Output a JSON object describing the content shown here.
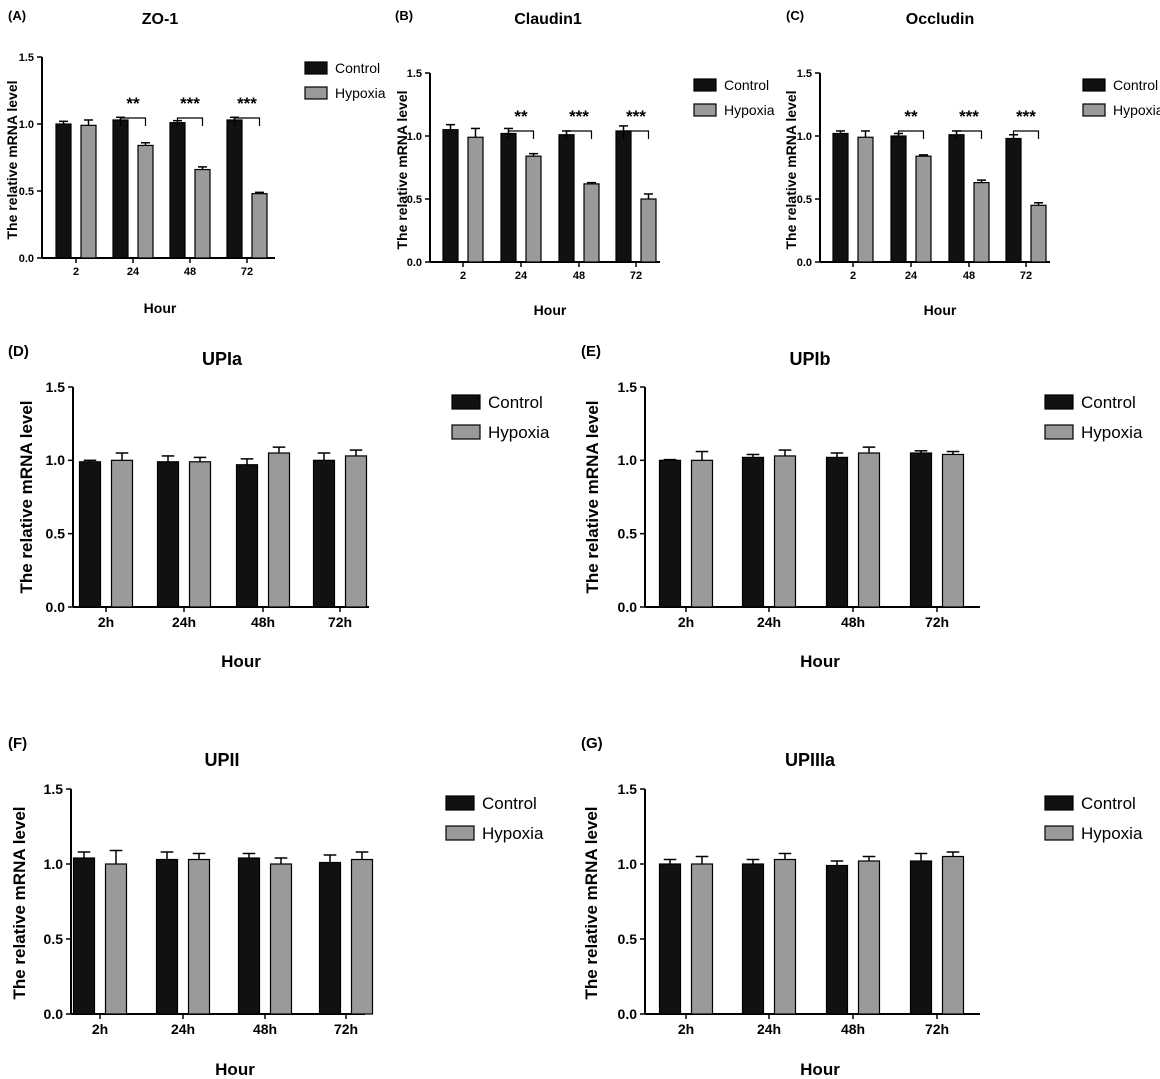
{
  "colors": {
    "control": "#111111",
    "hypoxia": "#9a9a9a",
    "axis": "#000000"
  },
  "chart_data": [
    {
      "id": "A",
      "panel_label": "(A)",
      "type": "bar",
      "title": "ZO-1",
      "xlabel": "Hour",
      "ylabel": "The relative mRNA level",
      "categories": [
        "2",
        "24",
        "48",
        "72"
      ],
      "ylim": [
        0,
        1.5
      ],
      "yticks": [
        "0.0",
        "0.5",
        "1.0",
        "1.5"
      ],
      "legend_placement": "top-right",
      "series": [
        {
          "name": "Control",
          "values": [
            1.0,
            1.03,
            1.01,
            1.03
          ],
          "errors": [
            0.02,
            0.02,
            0.015,
            0.02
          ]
        },
        {
          "name": "Hypoxia",
          "values": [
            0.99,
            0.84,
            0.66,
            0.48
          ],
          "errors": [
            0.04,
            0.02,
            0.02,
            0.01
          ]
        }
      ],
      "significance": [
        "",
        "**",
        "***",
        "***"
      ]
    },
    {
      "id": "B",
      "panel_label": "(B)",
      "type": "bar",
      "title": "Claudin1",
      "xlabel": "Hour",
      "ylabel": "The relative mRNA level",
      "categories": [
        "2",
        "24",
        "48",
        "72"
      ],
      "ylim": [
        0,
        1.5
      ],
      "yticks": [
        "0.0",
        "0.5",
        "1.0",
        "1.5"
      ],
      "legend_placement": "top-right",
      "series": [
        {
          "name": "Control",
          "values": [
            1.05,
            1.02,
            1.01,
            1.04
          ],
          "errors": [
            0.04,
            0.04,
            0.03,
            0.04
          ]
        },
        {
          "name": "Hypoxia",
          "values": [
            0.99,
            0.84,
            0.62,
            0.5
          ],
          "errors": [
            0.07,
            0.02,
            0.01,
            0.04
          ]
        }
      ],
      "significance": [
        "",
        "**",
        "***",
        "***"
      ]
    },
    {
      "id": "C",
      "panel_label": "(C)",
      "type": "bar",
      "title": "Occludin",
      "xlabel": "Hour",
      "ylabel": "The relative mRNA level",
      "categories": [
        "2",
        "24",
        "48",
        "72"
      ],
      "ylim": [
        0,
        1.5
      ],
      "yticks": [
        "0.0",
        "0.5",
        "1.0",
        "1.5"
      ],
      "legend_placement": "top-right",
      "series": [
        {
          "name": "Control",
          "values": [
            1.02,
            1.0,
            1.01,
            0.98
          ],
          "errors": [
            0.02,
            0.02,
            0.03,
            0.03
          ]
        },
        {
          "name": "Hypoxia",
          "values": [
            0.99,
            0.84,
            0.63,
            0.45
          ],
          "errors": [
            0.05,
            0.01,
            0.02,
            0.02
          ]
        }
      ],
      "significance": [
        "",
        "**",
        "***",
        "***"
      ]
    },
    {
      "id": "D",
      "panel_label": "(D)",
      "type": "bar",
      "title": "UPIa",
      "xlabel": "Hour",
      "ylabel": "The relative mRNA level",
      "categories": [
        "2h",
        "24h",
        "48h",
        "72h"
      ],
      "ylim": [
        0,
        1.5
      ],
      "yticks": [
        "0.0",
        "0.5",
        "1.0",
        "1.5"
      ],
      "legend_placement": "top-right",
      "series": [
        {
          "name": "Control",
          "values": [
            0.99,
            0.99,
            0.97,
            1.0
          ],
          "errors": [
            0.01,
            0.04,
            0.04,
            0.05
          ]
        },
        {
          "name": "Hypoxia",
          "values": [
            1.0,
            0.99,
            1.05,
            1.03
          ],
          "errors": [
            0.05,
            0.03,
            0.04,
            0.04
          ]
        }
      ],
      "significance": [
        "",
        "",
        "",
        ""
      ]
    },
    {
      "id": "E",
      "panel_label": "(E)",
      "type": "bar",
      "title": "UPIb",
      "xlabel": "Hour",
      "ylabel": "The relative mRNA level",
      "categories": [
        "2h",
        "24h",
        "48h",
        "72h"
      ],
      "ylim": [
        0,
        1.5
      ],
      "yticks": [
        "0.0",
        "0.5",
        "1.0",
        "1.5"
      ],
      "legend_placement": "top-right",
      "series": [
        {
          "name": "Control",
          "values": [
            1.0,
            1.02,
            1.02,
            1.05
          ],
          "errors": [
            0.005,
            0.02,
            0.03,
            0.015
          ]
        },
        {
          "name": "Hypoxia",
          "values": [
            1.0,
            1.03,
            1.05,
            1.04
          ],
          "errors": [
            0.06,
            0.04,
            0.04,
            0.02
          ]
        }
      ],
      "significance": [
        "",
        "",
        "",
        ""
      ]
    },
    {
      "id": "F",
      "panel_label": "(F)",
      "type": "bar",
      "title": "UPII",
      "xlabel": "Hour",
      "ylabel": "The relative mRNA level",
      "categories": [
        "2h",
        "24h",
        "48h",
        "72h"
      ],
      "ylim": [
        0,
        1.5
      ],
      "yticks": [
        "0.0",
        "0.5",
        "1.0",
        "1.5"
      ],
      "legend_placement": "top-right",
      "series": [
        {
          "name": "Control",
          "values": [
            1.04,
            1.03,
            1.04,
            1.01
          ],
          "errors": [
            0.04,
            0.05,
            0.03,
            0.05
          ]
        },
        {
          "name": "Hypoxia",
          "values": [
            1.0,
            1.03,
            1.0,
            1.03
          ],
          "errors": [
            0.09,
            0.04,
            0.04,
            0.05
          ]
        }
      ],
      "significance": [
        "",
        "",
        "",
        ""
      ]
    },
    {
      "id": "G",
      "panel_label": "(G)",
      "type": "bar",
      "title": "UPIIIa",
      "xlabel": "Hour",
      "ylabel": "The relative mRNA level",
      "categories": [
        "2h",
        "24h",
        "48h",
        "72h"
      ],
      "ylim": [
        0,
        1.5
      ],
      "yticks": [
        "0.0",
        "0.5",
        "1.0",
        "1.5"
      ],
      "legend_placement": "top-right",
      "series": [
        {
          "name": "Control",
          "values": [
            1.0,
            1.0,
            0.99,
            1.02
          ],
          "errors": [
            0.03,
            0.03,
            0.03,
            0.05
          ]
        },
        {
          "name": "Hypoxia",
          "values": [
            1.0,
            1.03,
            1.02,
            1.05
          ],
          "errors": [
            0.05,
            0.04,
            0.03,
            0.03
          ]
        }
      ],
      "significance": [
        "",
        "",
        "",
        ""
      ]
    }
  ]
}
